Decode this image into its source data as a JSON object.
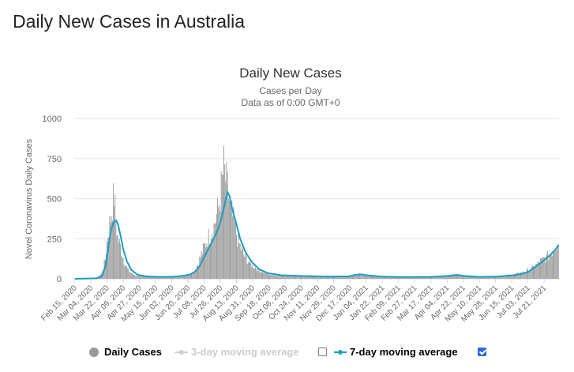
{
  "page": {
    "title": "Daily New Cases in Australia"
  },
  "colors": {
    "bars": "#999999",
    "line": "#1b9ec2",
    "grid": "#e6e6e6",
    "disabled": "#cccccc"
  },
  "chart_data": {
    "type": "bar",
    "title": "Daily New Cases",
    "subtitle": "Cases per Day",
    "subtitle2": "Data as of 0:00 GMT+0",
    "ylabel": "Novel Coronavirus Daily Cases",
    "xlabel": "",
    "ylim": [
      0,
      1000
    ],
    "yticks": [
      0,
      250,
      500,
      750,
      1000
    ],
    "xtick_labels": [
      "Feb 15, 2020",
      "Mar 04, 2020",
      "Mar 22, 2020",
      "Apr 09, 2020",
      "Apr 27, 2020",
      "May 15, 2020",
      "Jun 02, 2020",
      "Jun 20, 2020",
      "Jul 08, 2020",
      "Jul 26, 2020",
      "Aug 13, 2020",
      "Aug 31, 2020",
      "Sep 18, 2020",
      "Oct 06, 2020",
      "Oct 24, 2020",
      "Nov 11, 2020",
      "Nov 29, 2020",
      "Dec 17, 2020",
      "Jan 04, 2021",
      "Jan 22, 2021",
      "Feb 09, 2021",
      "Feb 27, 2021",
      "Mar 17, 2021",
      "Apr 04, 2021",
      "Apr 22, 2021",
      "May 10, 2021",
      "May 28, 2021",
      "Jun 15, 2021",
      "Jul 03, 2021",
      "Jul 21, 2021"
    ],
    "x_interval_days": 18,
    "total_days": 539,
    "daily_keypoints": [
      [
        0,
        0
      ],
      [
        24,
        5
      ],
      [
        30,
        30
      ],
      [
        34,
        120
      ],
      [
        37,
        280
      ],
      [
        40,
        380
      ],
      [
        42,
        460
      ],
      [
        44,
        520
      ],
      [
        46,
        360
      ],
      [
        48,
        260
      ],
      [
        51,
        200
      ],
      [
        55,
        110
      ],
      [
        60,
        50
      ],
      [
        66,
        25
      ],
      [
        75,
        15
      ],
      [
        90,
        10
      ],
      [
        105,
        12
      ],
      [
        115,
        15
      ],
      [
        125,
        22
      ],
      [
        132,
        40
      ],
      [
        137,
        90
      ],
      [
        142,
        170
      ],
      [
        148,
        250
      ],
      [
        155,
        330
      ],
      [
        160,
        440
      ],
      [
        163,
        560
      ],
      [
        166,
        690
      ],
      [
        168,
        620
      ],
      [
        170,
        560
      ],
      [
        173,
        450
      ],
      [
        177,
        360
      ],
      [
        182,
        230
      ],
      [
        188,
        150
      ],
      [
        195,
        95
      ],
      [
        205,
        55
      ],
      [
        215,
        30
      ],
      [
        225,
        22
      ],
      [
        240,
        20
      ],
      [
        260,
        18
      ],
      [
        280,
        15
      ],
      [
        300,
        14
      ],
      [
        310,
        22
      ],
      [
        315,
        30
      ],
      [
        322,
        24
      ],
      [
        330,
        18
      ],
      [
        345,
        12
      ],
      [
        365,
        12
      ],
      [
        390,
        12
      ],
      [
        410,
        16
      ],
      [
        420,
        22
      ],
      [
        425,
        28
      ],
      [
        430,
        22
      ],
      [
        440,
        14
      ],
      [
        455,
        12
      ],
      [
        470,
        15
      ],
      [
        490,
        28
      ],
      [
        500,
        45
      ],
      [
        506,
        55
      ],
      [
        512,
        80
      ],
      [
        518,
        110
      ],
      [
        524,
        130
      ],
      [
        530,
        160
      ],
      [
        535,
        210
      ],
      [
        538,
        245
      ]
    ],
    "ma7_keypoints": [
      [
        0,
        0
      ],
      [
        24,
        3
      ],
      [
        30,
        15
      ],
      [
        34,
        70
      ],
      [
        37,
        180
      ],
      [
        40,
        290
      ],
      [
        43,
        350
      ],
      [
        46,
        365
      ],
      [
        48,
        345
      ],
      [
        51,
        270
      ],
      [
        54,
        185
      ],
      [
        58,
        110
      ],
      [
        63,
        55
      ],
      [
        70,
        25
      ],
      [
        80,
        15
      ],
      [
        95,
        12
      ],
      [
        110,
        13
      ],
      [
        120,
        18
      ],
      [
        128,
        26
      ],
      [
        134,
        45
      ],
      [
        139,
        80
      ],
      [
        144,
        135
      ],
      [
        149,
        190
      ],
      [
        154,
        245
      ],
      [
        158,
        290
      ],
      [
        162,
        350
      ],
      [
        165,
        420
      ],
      [
        168,
        500
      ],
      [
        170,
        540
      ],
      [
        172,
        520
      ],
      [
        175,
        440
      ],
      [
        179,
        360
      ],
      [
        184,
        250
      ],
      [
        190,
        165
      ],
      [
        197,
        105
      ],
      [
        205,
        60
      ],
      [
        215,
        35
      ],
      [
        230,
        22
      ],
      [
        250,
        18
      ],
      [
        280,
        14
      ],
      [
        305,
        15
      ],
      [
        312,
        25
      ],
      [
        318,
        28
      ],
      [
        325,
        22
      ],
      [
        340,
        14
      ],
      [
        365,
        11
      ],
      [
        395,
        12
      ],
      [
        415,
        18
      ],
      [
        425,
        24
      ],
      [
        433,
        18
      ],
      [
        450,
        12
      ],
      [
        470,
        14
      ],
      [
        488,
        22
      ],
      [
        498,
        32
      ],
      [
        505,
        45
      ],
      [
        511,
        70
      ],
      [
        517,
        95
      ],
      [
        523,
        120
      ],
      [
        529,
        150
      ],
      [
        534,
        180
      ],
      [
        538,
        210
      ]
    ],
    "series": [
      {
        "name": "Daily Cases",
        "enabled": true
      },
      {
        "name": "3-day moving average",
        "enabled": false
      },
      {
        "name": "7-day moving average",
        "enabled": true
      }
    ]
  }
}
